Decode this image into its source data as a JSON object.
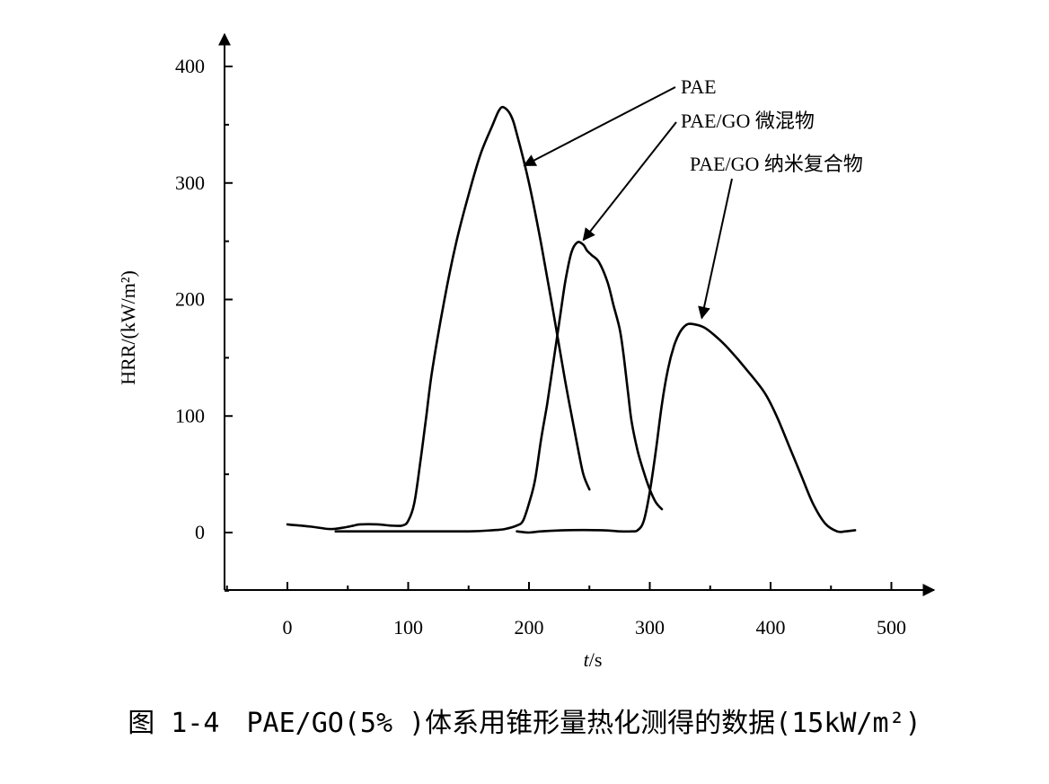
{
  "chart_data": {
    "type": "line",
    "xlabel": "t/s",
    "ylabel": "HRR/(kW/m²)",
    "xlim": [
      -50,
      520
    ],
    "ylim": [
      -50,
      420
    ],
    "x_ticks": [
      0,
      100,
      200,
      300,
      400,
      500
    ],
    "y_ticks": [
      0,
      100,
      200,
      300,
      400
    ],
    "grid": false,
    "series": [
      {
        "name": "PAE",
        "points": [
          [
            0,
            7
          ],
          [
            20,
            5
          ],
          [
            35,
            3
          ],
          [
            45,
            4
          ],
          [
            55,
            6
          ],
          [
            60,
            7
          ],
          [
            75,
            7
          ],
          [
            85,
            6
          ],
          [
            95,
            6
          ],
          [
            100,
            10
          ],
          [
            105,
            25
          ],
          [
            110,
            60
          ],
          [
            115,
            100
          ],
          [
            120,
            140
          ],
          [
            130,
            200
          ],
          [
            140,
            250
          ],
          [
            150,
            290
          ],
          [
            160,
            325
          ],
          [
            170,
            350
          ],
          [
            175,
            362
          ],
          [
            179,
            365
          ],
          [
            185,
            358
          ],
          [
            190,
            342
          ],
          [
            200,
            300
          ],
          [
            210,
            248
          ],
          [
            220,
            190
          ],
          [
            230,
            130
          ],
          [
            240,
            75
          ],
          [
            245,
            50
          ],
          [
            250,
            37
          ]
        ]
      },
      {
        "name": "PAE/GO 微混物",
        "points": [
          [
            40,
            1
          ],
          [
            100,
            1
          ],
          [
            150,
            1
          ],
          [
            170,
            2
          ],
          [
            180,
            3
          ],
          [
            190,
            6
          ],
          [
            195,
            10
          ],
          [
            200,
            25
          ],
          [
            205,
            45
          ],
          [
            210,
            80
          ],
          [
            215,
            110
          ],
          [
            220,
            145
          ],
          [
            225,
            180
          ],
          [
            230,
            215
          ],
          [
            235,
            240
          ],
          [
            240,
            249
          ],
          [
            245,
            247
          ],
          [
            248,
            242
          ],
          [
            252,
            238
          ],
          [
            258,
            232
          ],
          [
            265,
            215
          ],
          [
            270,
            195
          ],
          [
            275,
            175
          ],
          [
            278,
            155
          ],
          [
            282,
            120
          ],
          [
            285,
            95
          ],
          [
            290,
            70
          ],
          [
            295,
            52
          ],
          [
            300,
            37
          ],
          [
            305,
            26
          ],
          [
            310,
            20
          ]
        ]
      },
      {
        "name": "PAE/GO 纳米复合物",
        "points": [
          [
            190,
            1
          ],
          [
            200,
            0
          ],
          [
            210,
            1
          ],
          [
            230,
            2
          ],
          [
            260,
            2
          ],
          [
            275,
            1
          ],
          [
            285,
            1
          ],
          [
            290,
            2
          ],
          [
            295,
            10
          ],
          [
            300,
            35
          ],
          [
            305,
            70
          ],
          [
            310,
            110
          ],
          [
            315,
            140
          ],
          [
            320,
            160
          ],
          [
            325,
            172
          ],
          [
            330,
            178
          ],
          [
            335,
            179
          ],
          [
            345,
            176
          ],
          [
            355,
            168
          ],
          [
            365,
            158
          ],
          [
            380,
            140
          ],
          [
            395,
            120
          ],
          [
            405,
            100
          ],
          [
            415,
            75
          ],
          [
            425,
            50
          ],
          [
            435,
            25
          ],
          [
            445,
            8
          ],
          [
            455,
            1
          ],
          [
            462,
            1
          ],
          [
            470,
            2
          ]
        ]
      }
    ],
    "annotations": [
      {
        "text": "PAE",
        "target": [
          196,
          315
        ]
      },
      {
        "text": "PAE/GO 微混物",
        "target": [
          245,
          251
        ]
      },
      {
        "text": "PAE/GO 纳米复合物",
        "target": [
          343,
          184
        ]
      }
    ]
  },
  "caption": "图 1-4　PAE/GO(5% )体系用锥形量热化测得的数据(15kW/m²)"
}
